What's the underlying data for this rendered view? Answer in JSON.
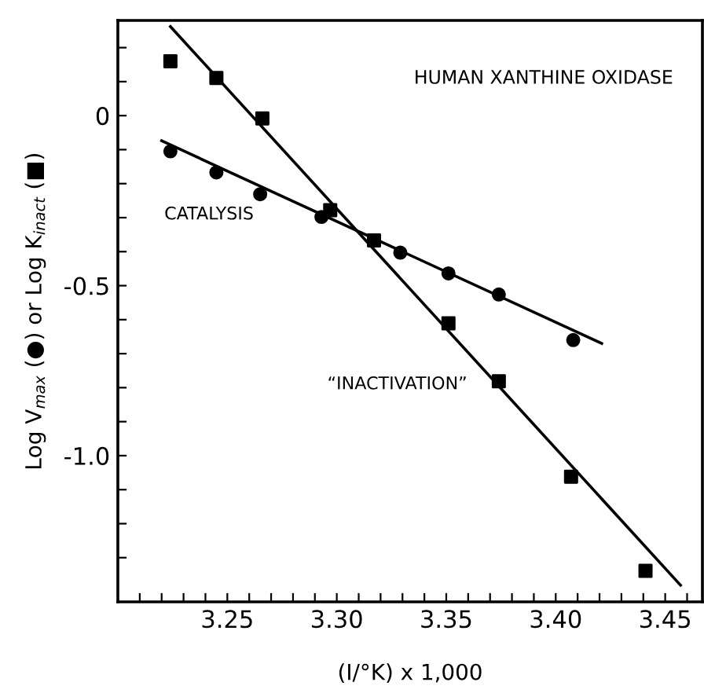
{
  "chart_data": {
    "type": "scatter",
    "title": "HUMAN XANTHINE OXIDASE",
    "xlabel": "(I/°K) x 1,000",
    "ylabel": "Log V$_{max}$ (●) or Log K$_{inact}$ (■)",
    "xlim": [
      3.2,
      3.467
    ],
    "ylim": [
      -1.43,
      0.28
    ],
    "xticks": [
      {
        "value": 3.21,
        "label": null
      },
      {
        "value": 3.22,
        "label": null
      },
      {
        "value": 3.23,
        "label": null
      },
      {
        "value": 3.24,
        "label": null
      },
      {
        "value": 3.25,
        "label": "3.25"
      },
      {
        "value": 3.26,
        "label": null
      },
      {
        "value": 3.27,
        "label": null
      },
      {
        "value": 3.28,
        "label": null
      },
      {
        "value": 3.29,
        "label": null
      },
      {
        "value": 3.3,
        "label": "3.30"
      },
      {
        "value": 3.31,
        "label": null
      },
      {
        "value": 3.32,
        "label": null
      },
      {
        "value": 3.33,
        "label": null
      },
      {
        "value": 3.34,
        "label": null
      },
      {
        "value": 3.35,
        "label": "3.35"
      },
      {
        "value": 3.36,
        "label": null
      },
      {
        "value": 3.37,
        "label": null
      },
      {
        "value": 3.38,
        "label": null
      },
      {
        "value": 3.39,
        "label": null
      },
      {
        "value": 3.4,
        "label": "3.40"
      },
      {
        "value": 3.41,
        "label": null
      },
      {
        "value": 3.42,
        "label": null
      },
      {
        "value": 3.43,
        "label": null
      },
      {
        "value": 3.44,
        "label": null
      },
      {
        "value": 3.45,
        "label": "3.45"
      },
      {
        "value": 3.46,
        "label": null
      }
    ],
    "yticks": [
      {
        "value": 0.2,
        "label": null
      },
      {
        "value": 0.1,
        "label": null
      },
      {
        "value": 0,
        "label": "0"
      },
      {
        "value": -0.1,
        "label": null
      },
      {
        "value": -0.2,
        "label": null
      },
      {
        "value": -0.3,
        "label": null
      },
      {
        "value": -0.4,
        "label": null
      },
      {
        "value": -0.5,
        "label": "-0.5"
      },
      {
        "value": -0.6,
        "label": null
      },
      {
        "value": -0.7,
        "label": null
      },
      {
        "value": -0.8,
        "label": null
      },
      {
        "value": -0.9,
        "label": null
      },
      {
        "value": -1.0,
        "label": "-1.0"
      },
      {
        "value": -1.1,
        "label": null
      },
      {
        "value": -1.2,
        "label": null
      },
      {
        "value": -1.3,
        "label": null
      }
    ],
    "grid": false,
    "legend": false,
    "series": [
      {
        "marker": "circle",
        "color": "#000000",
        "x": [
          3.224,
          3.245,
          3.265,
          3.293,
          3.329,
          3.351,
          3.374,
          3.408
        ],
        "values": [
          -0.105,
          -0.167,
          -0.231,
          -0.298,
          -0.403,
          -0.464,
          -0.526,
          -0.66
        ]
      },
      {
        "marker": "square",
        "color": "#000000",
        "x": [
          3.224,
          3.245,
          3.266,
          3.297,
          3.317,
          3.351,
          3.374,
          3.407,
          3.441
        ],
        "values": [
          0.16,
          0.111,
          -0.008,
          -0.278,
          -0.367,
          -0.611,
          -0.781,
          -1.062,
          -1.339
        ]
      },
      {
        "type": "line",
        "marker": "none",
        "line_style": "solid",
        "color": "#000000",
        "x": [
          3.22,
          3.421
        ],
        "values": [
          -0.074,
          -0.67
        ]
      },
      {
        "type": "line",
        "marker": "none",
        "line_style": "solid",
        "color": "#000000",
        "x": [
          3.224,
          3.457
        ],
        "values": [
          0.262,
          -1.381
        ]
      }
    ],
    "annotations": [
      "CATALYSIS",
      "“INACTIVATION”"
    ]
  }
}
